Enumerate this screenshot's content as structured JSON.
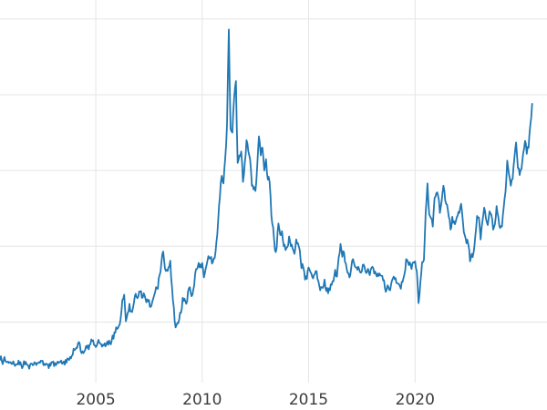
{
  "page": {
    "background": "#ffffff"
  },
  "chart_data": {
    "type": "line",
    "title": "",
    "xlabel": "",
    "ylabel": "",
    "legend": "none",
    "grid": true,
    "line_color": "#1f77b4",
    "grid_color": "#e5e5e5",
    "tick_color": "#3c3c3c",
    "xlim": [
      2000.5,
      2026.2
    ],
    "ylim": [
      2,
      52.5
    ],
    "xticks": [
      2005,
      2010,
      2015,
      2020
    ],
    "xtick_labels": [
      "2005",
      "2010",
      "2015",
      "2020"
    ],
    "yticks": [
      10,
      20,
      30,
      40,
      50
    ],
    "x_start_year": 2000.5,
    "x_step_years": 0.0833333,
    "values": [
      5.0,
      4.9,
      4.9,
      4.9,
      4.7,
      4.6,
      4.7,
      4.5,
      4.4,
      4.4,
      4.4,
      4.4,
      4.3,
      4.2,
      4.4,
      4.4,
      4.2,
      4.4,
      4.5,
      4.4,
      4.6,
      4.6,
      4.7,
      4.9,
      4.9,
      4.5,
      4.5,
      4.4,
      4.5,
      4.7,
      4.8,
      4.6,
      4.5,
      4.6,
      4.7,
      4.5,
      4.8,
      5.0,
      5.2,
      5.0,
      5.2,
      5.7,
      6.3,
      6.6,
      7.2,
      7.1,
      5.9,
      5.9,
      6.3,
      6.6,
      6.4,
      7.1,
      7.5,
      7.0,
      6.7,
      7.2,
      7.3,
      7.1,
      7.0,
      7.2,
      7.1,
      7.0,
      7.2,
      7.6,
      7.8,
      8.6,
      9.1,
      9.5,
      10.4,
      12.9,
      13.6,
      10.1,
      11.2,
      12.4,
      11.4,
      11.9,
      13.4,
      13.3,
      13.4,
      14.0,
      13.2,
      13.8,
      13.1,
      13.0,
      12.9,
      12.0,
      12.8,
      13.6,
      14.6,
      14.4,
      16.2,
      17.8,
      19.3,
      17.1,
      16.9,
      17.2,
      18.1,
      14.6,
      11.9,
      9.3,
      9.9,
      10.3,
      11.2,
      13.2,
      13.1,
      12.4,
      14.0,
      14.6,
      13.4,
      14.3,
      16.3,
      17.0,
      17.8,
      17.6,
      17.8,
      15.9,
      17.1,
      18.1,
      18.4,
      18.6,
      17.9,
      18.4,
      20.6,
      23.4,
      26.5,
      29.3,
      28.3,
      31.7,
      36.0,
      48.6,
      35.5,
      35.0,
      39.5,
      41.8,
      31.0,
      32.0,
      32.5,
      28.5,
      31.0,
      34.0,
      32.5,
      31.5,
      28.0,
      27.5,
      27.3,
      30.5,
      34.5,
      32.0,
      33.0,
      30.0,
      31.5,
      28.8,
      28.5,
      24.0,
      22.5,
      19.5,
      19.8,
      23.0,
      21.5,
      22.0,
      20.0,
      19.5,
      19.9,
      21.3,
      20.0,
      19.7,
      19.0,
      20.9,
      20.4,
      19.5,
      17.1,
      17.2,
      15.6,
      15.7,
      17.2,
      16.6,
      16.0,
      16.2,
      16.7,
      15.7,
      14.8,
      14.6,
      14.5,
      15.6,
      14.1,
      13.8,
      14.2,
      14.9,
      15.4,
      16.9,
      16.0,
      18.6,
      20.3,
      18.6,
      19.2,
      17.7,
      16.5,
      15.9,
      17.1,
      18.3,
      17.4,
      17.2,
      17.3,
      16.6,
      16.7,
      17.6,
      16.7,
      16.7,
      16.5,
      16.9,
      17.3,
      16.4,
      16.3,
      16.4,
      16.4,
      16.1,
      15.5,
      14.5,
      14.3,
      14.6,
      14.2,
      15.5,
      16.0,
      15.8,
      15.1,
      15.0,
      14.4,
      15.3,
      16.3,
      18.3,
      17.9,
      17.9,
      17.0,
      17.9,
      18.0,
      16.7,
      12.5,
      15.2,
      17.9,
      18.2,
      24.4,
      28.3,
      24.2,
      23.7,
      22.6,
      26.4,
      27.0,
      26.7,
      24.4,
      25.9,
      28.0,
      26.1,
      25.5,
      23.9,
      22.2,
      23.9,
      23.3,
      23.3,
      24.0,
      24.4,
      25.6,
      23.2,
      21.5,
      20.4,
      20.3,
      18.0,
      19.0,
      19.2,
      21.4,
      24.0,
      23.8,
      20.9,
      23.3,
      25.1,
      23.6,
      22.8,
      24.6,
      24.2,
      22.2,
      22.9,
      25.3,
      23.8,
      22.4,
      22.6,
      25.1,
      27.2,
      31.3,
      29.4,
      28.0,
      28.9,
      31.6,
      33.7,
      30.3,
      29.4,
      30.2,
      32.3,
      33.9,
      32.2,
      33.0,
      36.0,
      38.8
    ]
  }
}
